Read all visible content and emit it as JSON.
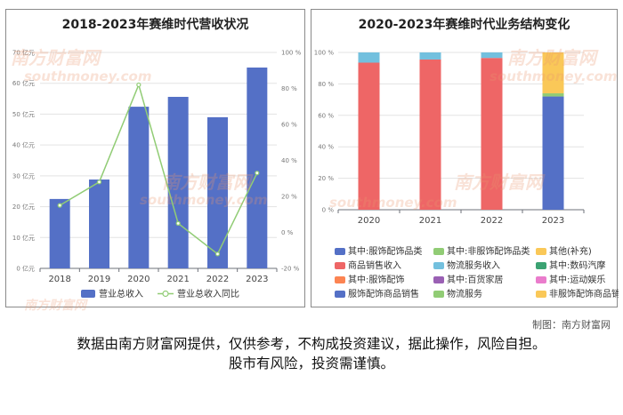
{
  "chart_data": [
    {
      "type": "bar+line",
      "title": "2018-2023年赛维时代营收状况",
      "categories": [
        "2018",
        "2019",
        "2020",
        "2021",
        "2022",
        "2023"
      ],
      "ylim_left": [
        0,
        70
      ],
      "left_ticks": [
        0,
        10,
        20,
        30,
        40,
        50,
        60,
        70
      ],
      "left_tick_labels": [
        "0 亿元",
        "10 亿元",
        "20 亿元",
        "30 亿元",
        "40 亿元",
        "50 亿元",
        "60 亿元",
        "70 亿元"
      ],
      "ylim_right": [
        -20,
        100
      ],
      "right_ticks": [
        -20,
        0,
        20,
        40,
        60,
        80,
        100
      ],
      "right_tick_labels": [
        "-20 %",
        "0 %",
        "20 %",
        "40 %",
        "60 %",
        "80 %",
        "100 %"
      ],
      "series": [
        {
          "name": "营业总收入",
          "type": "bar",
          "axis": "left",
          "color": "#5470c6",
          "values": [
            22.5,
            28.8,
            52.4,
            55.6,
            49.0,
            65.1
          ]
        },
        {
          "name": "营业总收入同比",
          "type": "line",
          "axis": "right",
          "color": "#91cc75",
          "values": [
            15,
            28,
            82,
            5,
            -12,
            33
          ]
        }
      ],
      "legend_position": "bottom",
      "grid": true
    },
    {
      "type": "stacked-bar",
      "title": "2020-2023年赛维时代业务结构变化",
      "categories": [
        "2020",
        "2021",
        "2022",
        "2023"
      ],
      "ylim": [
        0,
        100
      ],
      "ticks": [
        0,
        20,
        40,
        60,
        80,
        100
      ],
      "tick_labels": [
        "0 %",
        "20 %",
        "40 %",
        "60 %",
        "80 %",
        "100 %"
      ],
      "series": [
        {
          "name": "其中:服饰配饰品类",
          "color": "#5470c6",
          "values": [
            0,
            0,
            0,
            0
          ]
        },
        {
          "name": "其中:非服饰配饰品类",
          "color": "#91cc75",
          "values": [
            0,
            0,
            0,
            0
          ]
        },
        {
          "name": "其他(补充)",
          "color": "#fac858",
          "values": [
            0,
            0,
            0,
            0
          ]
        },
        {
          "name": "商品销售收入",
          "color": "#ee6666",
          "values": [
            93.5,
            95.5,
            96.5,
            0
          ]
        },
        {
          "name": "物流服务收入",
          "color": "#73c0de",
          "values": [
            6.5,
            4.5,
            3.5,
            0
          ]
        },
        {
          "name": "其中:数码汽摩",
          "color": "#3ba272",
          "values": [
            0,
            0,
            0,
            0
          ]
        },
        {
          "name": "其中:服饰配饰",
          "color": "#fc8452",
          "values": [
            0,
            0,
            0,
            0
          ]
        },
        {
          "name": "其中:百货家居",
          "color": "#9a60b4",
          "values": [
            0,
            0,
            0,
            0
          ]
        },
        {
          "name": "其中:运动娱乐",
          "color": "#ea7ccc",
          "values": [
            0,
            0,
            0,
            0
          ]
        },
        {
          "name": "服饰配饰商品销售",
          "color": "#5470c6",
          "values": [
            0,
            0,
            0,
            72
          ]
        },
        {
          "name": "物流服务",
          "color": "#91cc75",
          "values": [
            0,
            0,
            0,
            2
          ]
        },
        {
          "name": "非服饰配饰商品销售",
          "color": "#fac858",
          "values": [
            0,
            0,
            0,
            26
          ]
        }
      ],
      "legend_position": "bottom",
      "grid": true
    }
  ],
  "credit": "制图：南方财富网",
  "disclaimer_line1": "数据由南方财富网提供，仅供参考，不构成投资建议，据此操作，风险自担。",
  "disclaimer_line2": "股市有风险，投资需谨慎。",
  "watermark_cn": "南方财富网",
  "watermark_en": "southmoney.com"
}
